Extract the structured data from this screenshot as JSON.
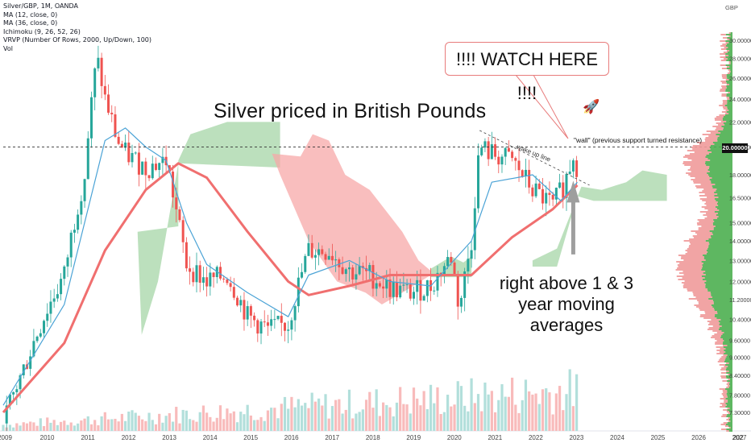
{
  "legend": {
    "symbol": "Silver/GBP, 1M, OANDA",
    "ma12": "MA (12, close, 0)",
    "ma36": "MA (36, close, 0)",
    "ichimoku": "Ichimoku (9, 26, 52, 26)",
    "vrvp": "VRVP (Number Of Rows, 2000, Up/Down, 100)",
    "vol": "Vol"
  },
  "annotations": {
    "title": "Silver priced in British Pounds",
    "callout": "!!!!  WATCH HERE !!!!",
    "wall": "\"wall\" (previous support turned resistance)",
    "wake_up": "wake up line",
    "bottom_line1": "right above 1 & 3",
    "bottom_line2": "year moving averages"
  },
  "price_axis": {
    "currency": "GBP",
    "ticks": [
      "30.00000",
      "28.00000",
      "26.00000",
      "24.00000",
      "22.00000",
      "20.00000",
      "18.00000",
      "16.50000",
      "15.00000",
      "14.00000",
      "13.00000",
      "12.00000",
      "11.20000",
      "10.40000",
      "9.60000",
      "9.00000",
      "8.40000",
      "7.80000",
      "7.30000"
    ],
    "current": "20.00000"
  },
  "time_axis": {
    "labels": [
      "2009",
      "2010",
      "2011",
      "2012",
      "2013",
      "2014",
      "2015",
      "2016",
      "2017",
      "2018",
      "2019",
      "2020",
      "2021",
      "2022",
      "2023",
      "2024",
      "2025",
      "2026",
      "2027",
      "202"
    ]
  },
  "colors": {
    "up": "#26a69a",
    "down": "#ef5350",
    "ma12": "#4ba3d6",
    "ma36": "#f06f6f",
    "cloud_bull": "#a5d6a7",
    "cloud_bear": "#f7a8a8",
    "vp_up": "#4caf50",
    "vp_down": "#ef9a9a"
  },
  "chart_data": {
    "type": "candlestick",
    "title": "Silver priced in British Pounds",
    "symbol": "Silver/GBP",
    "interval": "1M",
    "ylabel": "GBP",
    "y_scale": "log",
    "ylim": [
      7.0,
      31.0
    ],
    "xlim": [
      2009.0,
      2027.0
    ],
    "resistance_level": 20.0,
    "close": [
      {
        "t": "2009",
        "v": 7.0
      },
      {
        "t": "2009.5",
        "v": 8.6
      },
      {
        "t": "2010",
        "v": 10.5
      },
      {
        "t": "2010.5",
        "v": 12.3
      },
      {
        "t": "2011",
        "v": 18.0
      },
      {
        "t": "2011.3",
        "v": 28.0
      },
      {
        "t": "2011.5",
        "v": 24.0
      },
      {
        "t": "2011.8",
        "v": 20.5
      },
      {
        "t": "2012",
        "v": 19.5
      },
      {
        "t": "2012.5",
        "v": 18.5
      },
      {
        "t": "2013",
        "v": 19.0
      },
      {
        "t": "2013.3",
        "v": 15.0
      },
      {
        "t": "2013.5",
        "v": 12.8
      },
      {
        "t": "2014",
        "v": 12.0
      },
      {
        "t": "2014.5",
        "v": 12.3
      },
      {
        "t": "2015",
        "v": 10.5
      },
      {
        "t": "2015.5",
        "v": 10.0
      },
      {
        "t": "2016",
        "v": 10.2
      },
      {
        "t": "2016.5",
        "v": 13.5
      },
      {
        "t": "2017",
        "v": 13.5
      },
      {
        "t": "2017.5",
        "v": 12.5
      },
      {
        "t": "2018",
        "v": 12.3
      },
      {
        "t": "2018.5",
        "v": 11.7
      },
      {
        "t": "2019",
        "v": 11.5
      },
      {
        "t": "2019.5",
        "v": 11.8
      },
      {
        "t": "2020",
        "v": 13.2
      },
      {
        "t": "2020.2",
        "v": 10.8
      },
      {
        "t": "2020.5",
        "v": 14.0
      },
      {
        "t": "2020.7",
        "v": 20.0
      },
      {
        "t": "2021",
        "v": 19.5
      },
      {
        "t": "2021.5",
        "v": 19.0
      },
      {
        "t": "2022",
        "v": 17.0
      },
      {
        "t": "2022.5",
        "v": 16.0
      },
      {
        "t": "2022.8",
        "v": 17.5
      },
      {
        "t": "2023",
        "v": 19.5
      },
      {
        "t": "2023.1",
        "v": 18.5
      }
    ],
    "ma12": [
      {
        "t": "2009",
        "v": 7.5
      },
      {
        "t": "2010.5",
        "v": 11.0
      },
      {
        "t": "2011.5",
        "v": 20.5
      },
      {
        "t": "2012",
        "v": 21.5
      },
      {
        "t": "2012.5",
        "v": 20.0
      },
      {
        "t": "2013",
        "v": 19.0
      },
      {
        "t": "2013.5",
        "v": 15.0
      },
      {
        "t": "2014",
        "v": 12.8
      },
      {
        "t": "2015",
        "v": 11.5
      },
      {
        "t": "2016",
        "v": 10.5
      },
      {
        "t": "2016.5",
        "v": 12.3
      },
      {
        "t": "2017.5",
        "v": 13.0
      },
      {
        "t": "2018.5",
        "v": 12.0
      },
      {
        "t": "2019.5",
        "v": 11.8
      },
      {
        "t": "2020.5",
        "v": 14.0
      },
      {
        "t": "2021",
        "v": 17.5
      },
      {
        "t": "2022",
        "v": 18.0
      },
      {
        "t": "2022.7",
        "v": 16.3
      },
      {
        "t": "2023.1",
        "v": 17.5
      }
    ],
    "ma36": [
      {
        "t": "2009",
        "v": 7.3
      },
      {
        "t": "2010.5",
        "v": 9.5
      },
      {
        "t": "2011.5",
        "v": 13.5
      },
      {
        "t": "2012.5",
        "v": 17.0
      },
      {
        "t": "2013.3",
        "v": 18.8
      },
      {
        "t": "2014",
        "v": 17.8
      },
      {
        "t": "2015",
        "v": 14.5
      },
      {
        "t": "2016",
        "v": 12.0
      },
      {
        "t": "2016.5",
        "v": 11.4
      },
      {
        "t": "2017.5",
        "v": 11.8
      },
      {
        "t": "2018.5",
        "v": 12.3
      },
      {
        "t": "2019.5",
        "v": 12.3
      },
      {
        "t": "2020.5",
        "v": 12.3
      },
      {
        "t": "2021.5",
        "v": 14.2
      },
      {
        "t": "2022.5",
        "v": 15.8
      },
      {
        "t": "2023.1",
        "v": 17.3
      }
    ],
    "volume_note": "monthly volume bars, increasing from 2013 onward"
  }
}
